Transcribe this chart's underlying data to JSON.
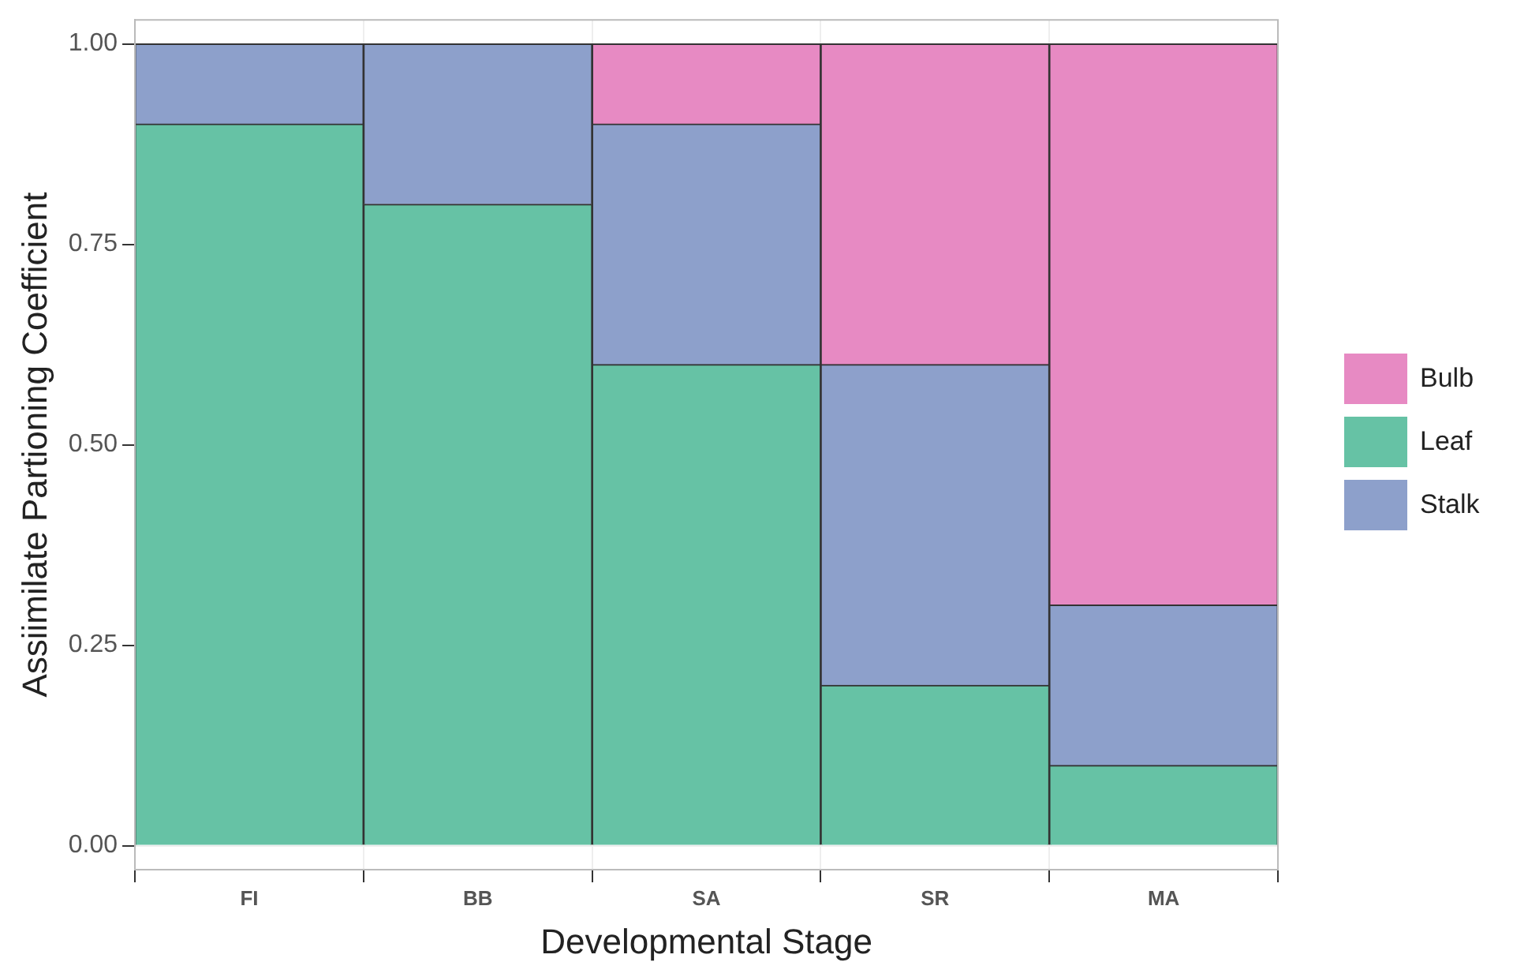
{
  "chart_data": {
    "type": "bar",
    "xlabel": "Developmental Stage",
    "ylabel": "Assiimilate Partioning Coefficient",
    "categories": [
      "FI",
      "BB",
      "SA",
      "SR",
      "MA"
    ],
    "stacked": true,
    "series": [
      {
        "name": "Leaf",
        "color": "#66c2a5",
        "values": [
          0.9,
          0.8,
          0.6,
          0.2,
          0.1
        ]
      },
      {
        "name": "Stalk",
        "color": "#8da0cb",
        "values": [
          0.1,
          0.2,
          0.3,
          0.4,
          0.2
        ]
      },
      {
        "name": "Bulb",
        "color": "#e78ac3",
        "values": [
          0,
          0,
          0.1,
          0.4,
          0.7
        ]
      }
    ],
    "ylim": [
      -0.03,
      1.03
    ],
    "yticks": [
      {
        "value": 0,
        "label": "0.00"
      },
      {
        "value": 0.25,
        "label": "0.25"
      },
      {
        "value": 0.5,
        "label": "0.50"
      },
      {
        "value": 0.75,
        "label": "0.75"
      },
      {
        "value": 1,
        "label": "1.00"
      }
    ],
    "grid": true,
    "legend": "right"
  }
}
